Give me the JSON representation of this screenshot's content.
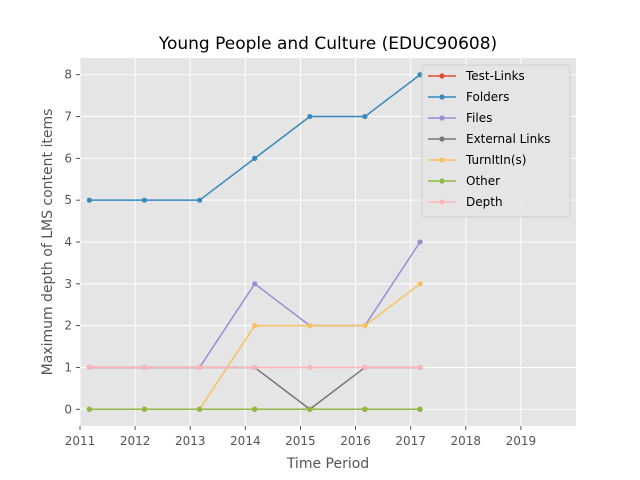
{
  "chart_data": {
    "type": "line",
    "title": "Young People and Culture (EDUC90608)",
    "xlabel": "Time Period",
    "ylabel": "Maximum depth of LMS content items",
    "xlim": [
      2011,
      2020
    ],
    "ylim": [
      -0.4,
      8.4
    ],
    "x_ticks": [
      "2011",
      "2012",
      "2013",
      "2014",
      "2015",
      "2016",
      "2017",
      "2018",
      "2019"
    ],
    "y_ticks": [
      "0",
      "1",
      "2",
      "3",
      "4",
      "5",
      "6",
      "7",
      "8"
    ],
    "grid": true,
    "legend_position": "top-right",
    "x": [
      2011.17,
      2012.17,
      2013.17,
      2014.17,
      2015.17,
      2016.17,
      2017.17
    ],
    "series": [
      {
        "name": "Test-Links",
        "color": "#E24A33",
        "values": [
          0,
          0,
          0,
          0,
          0,
          0,
          0
        ]
      },
      {
        "name": "Folders",
        "color": "#348ABD",
        "values": [
          5,
          5,
          5,
          6,
          7,
          7,
          8
        ]
      },
      {
        "name": "Files",
        "color": "#988ED5",
        "values": [
          1,
          1,
          1,
          3,
          2,
          2,
          4
        ]
      },
      {
        "name": "External Links",
        "color": "#777777",
        "values": [
          1,
          1,
          1,
          1,
          0,
          1,
          1
        ]
      },
      {
        "name": "TurnItIn(s)",
        "color": "#FBC15E",
        "values": [
          0,
          0,
          0,
          2,
          2,
          2,
          3
        ]
      },
      {
        "name": "Other",
        "color": "#8EBA42",
        "values": [
          0,
          0,
          0,
          0,
          0,
          0,
          0
        ]
      },
      {
        "name": "Depth",
        "color": "#FFB5B8",
        "values": [
          1,
          1,
          1,
          1,
          1,
          1,
          1
        ]
      }
    ]
  }
}
